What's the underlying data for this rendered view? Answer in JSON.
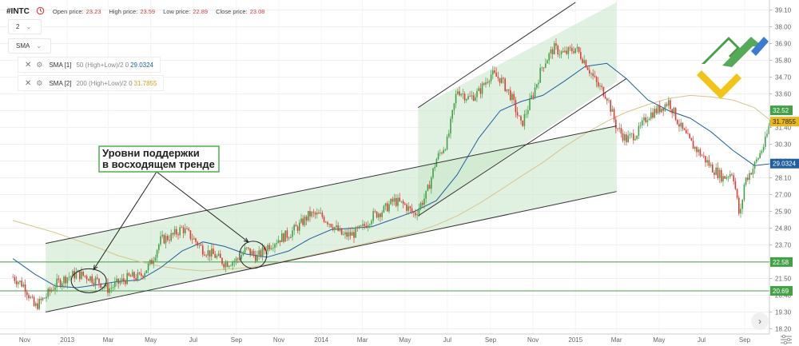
{
  "header": {
    "symbol": "#INTC",
    "open_label": "Open price:",
    "open_value": "23.23",
    "high_label": "High price:",
    "high_value": "23.59",
    "low_label": "Low price:",
    "low_value": "22.89",
    "close_label": "Close price:",
    "close_value": "23.08",
    "clock_icon": "clock-icon"
  },
  "controls": {
    "interval_value": "2",
    "indicator_select": "SMA",
    "chevron_icon": "chevron-down-icon"
  },
  "indicators": [
    {
      "name": "SMA [1]",
      "params": "50 (High+Low)/2 0",
      "value": "29.0324",
      "color": "#1f5fa0"
    },
    {
      "name": "SMA [2]",
      "params": "200 (High+Low)/2 0",
      "value": "31.7855",
      "color": "#d4a020"
    }
  ],
  "annotation": {
    "line1": "Уровни поддержки",
    "line2": "в восходящем тренде"
  },
  "chart_data": {
    "type": "candlestick",
    "y_ticks": [
      "39.10",
      "38.00",
      "36.90",
      "35.80",
      "34.70",
      "33.60",
      "32.50",
      "31.40",
      "30.30",
      "29.20",
      "28.10",
      "27.00",
      "25.90",
      "24.80",
      "23.70",
      "22.60",
      "21.50",
      "20.40",
      "19.30",
      "18.20"
    ],
    "x_ticks": [
      "Nov",
      "2013",
      "Mar",
      "May",
      "Jul",
      "Sep",
      "Nov",
      "2014",
      "Mar",
      "May",
      "Jul",
      "Sep",
      "Nov",
      "2015",
      "Mar",
      "May",
      "Jul",
      "Sep"
    ],
    "ylim": [
      17.9,
      39.6
    ],
    "horizontal_levels": [
      {
        "value": 22.58,
        "label": "22.58",
        "color": "#43a047"
      },
      {
        "value": 20.69,
        "label": "20.69",
        "color": "#43a047"
      }
    ],
    "price_tags": [
      {
        "value": 32.52,
        "label": "32.52",
        "color": "#43a047"
      },
      {
        "value": 31.7855,
        "label": "31.7855",
        "color": "#e8b820"
      },
      {
        "value": 29.0324,
        "label": "29.0324",
        "color": "#1f5fa0"
      }
    ],
    "candle_colors": {
      "up": "#43a047",
      "down": "#e53935"
    },
    "sma_colors": {
      "sma50": "#1f5fa0",
      "sma200": "#d8c48a"
    },
    "channel_fill": "#c8e6c9",
    "price_path": [
      [
        "2012-10-15",
        21.6
      ],
      [
        "2012-11-01",
        21.0
      ],
      [
        "2012-11-15",
        19.6
      ],
      [
        "2012-12-01",
        20.3
      ],
      [
        "2012-12-15",
        21.1
      ],
      [
        "2013-01-01",
        21.6
      ],
      [
        "2013-01-15",
        21.8
      ],
      [
        "2013-02-01",
        21.6
      ],
      [
        "2013-02-15",
        21.3
      ],
      [
        "2013-03-01",
        20.8
      ],
      [
        "2013-03-15",
        21.2
      ],
      [
        "2013-04-01",
        21.6
      ],
      [
        "2013-04-15",
        21.6
      ],
      [
        "2013-05-01",
        22.5
      ],
      [
        "2013-05-15",
        24.0
      ],
      [
        "2013-06-01",
        24.3
      ],
      [
        "2013-06-15",
        24.8
      ],
      [
        "2013-07-01",
        24.1
      ],
      [
        "2013-07-15",
        23.4
      ],
      [
        "2013-08-01",
        23.0
      ],
      [
        "2013-08-15",
        22.5
      ],
      [
        "2013-09-01",
        22.7
      ],
      [
        "2013-09-15",
        23.4
      ],
      [
        "2013-10-01",
        22.9
      ],
      [
        "2013-10-15",
        23.6
      ],
      [
        "2013-11-01",
        24.1
      ],
      [
        "2013-11-15",
        24.4
      ],
      [
        "2013-12-01",
        25.0
      ],
      [
        "2013-12-15",
        25.7
      ],
      [
        "2014-01-01",
        25.6
      ],
      [
        "2014-01-15",
        25.1
      ],
      [
        "2014-02-01",
        24.3
      ],
      [
        "2014-02-15",
        24.4
      ],
      [
        "2014-03-01",
        24.8
      ],
      [
        "2014-03-15",
        25.6
      ],
      [
        "2014-04-01",
        26.0
      ],
      [
        "2014-04-15",
        26.6
      ],
      [
        "2014-05-01",
        26.3
      ],
      [
        "2014-05-15",
        25.7
      ],
      [
        "2014-06-01",
        27.0
      ],
      [
        "2014-06-15",
        29.3
      ],
      [
        "2014-07-01",
        30.5
      ],
      [
        "2014-07-15",
        33.9
      ],
      [
        "2014-08-01",
        33.3
      ],
      [
        "2014-08-15",
        33.7
      ],
      [
        "2014-09-01",
        34.9
      ],
      [
        "2014-09-15",
        34.6
      ],
      [
        "2014-10-01",
        33.4
      ],
      [
        "2014-10-15",
        31.5
      ],
      [
        "2014-11-01",
        33.6
      ],
      [
        "2014-11-15",
        35.5
      ],
      [
        "2014-12-01",
        36.6
      ],
      [
        "2014-12-15",
        36.2
      ],
      [
        "2015-01-01",
        36.6
      ],
      [
        "2015-01-15",
        35.7
      ],
      [
        "2015-02-01",
        34.2
      ],
      [
        "2015-02-15",
        33.5
      ],
      [
        "2015-03-01",
        31.4
      ],
      [
        "2015-03-15",
        30.6
      ],
      [
        "2015-04-01",
        31.1
      ],
      [
        "2015-04-15",
        32.2
      ],
      [
        "2015-05-01",
        32.6
      ],
      [
        "2015-05-15",
        33.1
      ],
      [
        "2015-06-01",
        31.4
      ],
      [
        "2015-06-15",
        30.4
      ],
      [
        "2015-07-01",
        29.6
      ],
      [
        "2015-07-15",
        28.8
      ],
      [
        "2015-08-01",
        28.1
      ],
      [
        "2015-08-15",
        28.5
      ],
      [
        "2015-08-25",
        25.4
      ],
      [
        "2015-09-01",
        27.9
      ],
      [
        "2015-09-15",
        28.9
      ],
      [
        "2015-10-01",
        30.5
      ],
      [
        "2015-10-10",
        32.3
      ]
    ],
    "sma50_path": [
      [
        "2012-10-15",
        22.8
      ],
      [
        "2012-11-15",
        21.8
      ],
      [
        "2012-12-15",
        21.0
      ],
      [
        "2013-01-15",
        20.9
      ],
      [
        "2013-02-15",
        21.1
      ],
      [
        "2013-03-15",
        21.3
      ],
      [
        "2013-04-15",
        21.4
      ],
      [
        "2013-05-15",
        22.2
      ],
      [
        "2013-06-15",
        23.3
      ],
      [
        "2013-07-15",
        23.9
      ],
      [
        "2013-08-15",
        23.6
      ],
      [
        "2013-09-15",
        23.1
      ],
      [
        "2013-10-15",
        22.9
      ],
      [
        "2013-11-15",
        23.3
      ],
      [
        "2013-12-15",
        24.1
      ],
      [
        "2014-01-15",
        24.7
      ],
      [
        "2014-02-15",
        24.8
      ],
      [
        "2014-03-15",
        24.9
      ],
      [
        "2014-04-15",
        25.4
      ],
      [
        "2014-05-15",
        25.9
      ],
      [
        "2014-06-15",
        26.6
      ],
      [
        "2014-07-15",
        28.3
      ],
      [
        "2014-08-15",
        30.7
      ],
      [
        "2014-09-15",
        32.5
      ],
      [
        "2014-10-15",
        33.1
      ],
      [
        "2014-11-15",
        33.5
      ],
      [
        "2014-12-15",
        34.4
      ],
      [
        "2015-01-15",
        35.4
      ],
      [
        "2015-02-15",
        35.6
      ],
      [
        "2015-03-15",
        34.6
      ],
      [
        "2015-04-15",
        33.2
      ],
      [
        "2015-05-15",
        32.5
      ],
      [
        "2015-06-15",
        32.0
      ],
      [
        "2015-07-15",
        31.1
      ],
      [
        "2015-08-15",
        29.9
      ],
      [
        "2015-09-15",
        28.9
      ],
      [
        "2015-10-10",
        29.03
      ]
    ],
    "sma200_path": [
      [
        "2012-10-15",
        25.3
      ],
      [
        "2012-11-15",
        24.9
      ],
      [
        "2012-12-15",
        24.5
      ],
      [
        "2013-01-15",
        24.0
      ],
      [
        "2013-02-15",
        23.5
      ],
      [
        "2013-03-15",
        23.0
      ],
      [
        "2013-04-15",
        22.6
      ],
      [
        "2013-05-15",
        22.3
      ],
      [
        "2013-06-15",
        22.1
      ],
      [
        "2013-07-15",
        22.0
      ],
      [
        "2013-08-15",
        22.1
      ],
      [
        "2013-09-15",
        22.2
      ],
      [
        "2013-10-15",
        22.4
      ],
      [
        "2013-11-15",
        22.7
      ],
      [
        "2013-12-15",
        23.0
      ],
      [
        "2014-01-15",
        23.3
      ],
      [
        "2014-02-15",
        23.6
      ],
      [
        "2014-03-15",
        23.9
      ],
      [
        "2014-04-15",
        24.2
      ],
      [
        "2014-05-15",
        24.5
      ],
      [
        "2014-06-15",
        25.0
      ],
      [
        "2014-07-15",
        25.6
      ],
      [
        "2014-08-15",
        26.4
      ],
      [
        "2014-09-15",
        27.3
      ],
      [
        "2014-10-15",
        28.2
      ],
      [
        "2014-11-15",
        29.1
      ],
      [
        "2014-12-15",
        30.1
      ],
      [
        "2015-01-15",
        31.0
      ],
      [
        "2015-02-15",
        31.8
      ],
      [
        "2015-03-15",
        32.4
      ],
      [
        "2015-04-15",
        32.9
      ],
      [
        "2015-05-15",
        33.3
      ],
      [
        "2015-06-15",
        33.5
      ],
      [
        "2015-07-15",
        33.4
      ],
      [
        "2015-08-15",
        33.2
      ],
      [
        "2015-09-15",
        32.7
      ],
      [
        "2015-10-10",
        31.79
      ]
    ],
    "channels": [
      {
        "name": "lower-channel",
        "upper": [
          [
            "2012-12-01",
            23.8
          ],
          [
            "2015-03-01",
            31.5
          ]
        ],
        "lower": [
          [
            "2012-12-01",
            19.3
          ],
          [
            "2015-03-01",
            27.2
          ]
        ]
      },
      {
        "name": "upper-channel",
        "upper": [
          [
            "2014-05-20",
            32.7
          ],
          [
            "2015-03-01",
            39.6
          ]
        ],
        "lower": [
          [
            "2014-05-20",
            25.6
          ],
          [
            "2015-03-01",
            34.4
          ]
        ]
      }
    ],
    "trend_lines": [
      {
        "from": [
          "2012-12-01",
          23.8
        ],
        "to": [
          "2015-03-01",
          31.5
        ]
      },
      {
        "from": [
          "2012-12-01",
          19.3
        ],
        "to": [
          "2015-03-01",
          27.2
        ]
      },
      {
        "from": [
          "2014-05-20",
          32.7
        ],
        "to": [
          "2015-01-01",
          39.6
        ]
      },
      {
        "from": [
          "2014-05-20",
          25.6
        ],
        "to": [
          "2015-03-15",
          34.6
        ]
      }
    ],
    "support_circles": [
      {
        "date": "2013-02-01",
        "value": 21.35
      },
      {
        "date": "2013-09-25",
        "value": 23.05
      }
    ]
  }
}
